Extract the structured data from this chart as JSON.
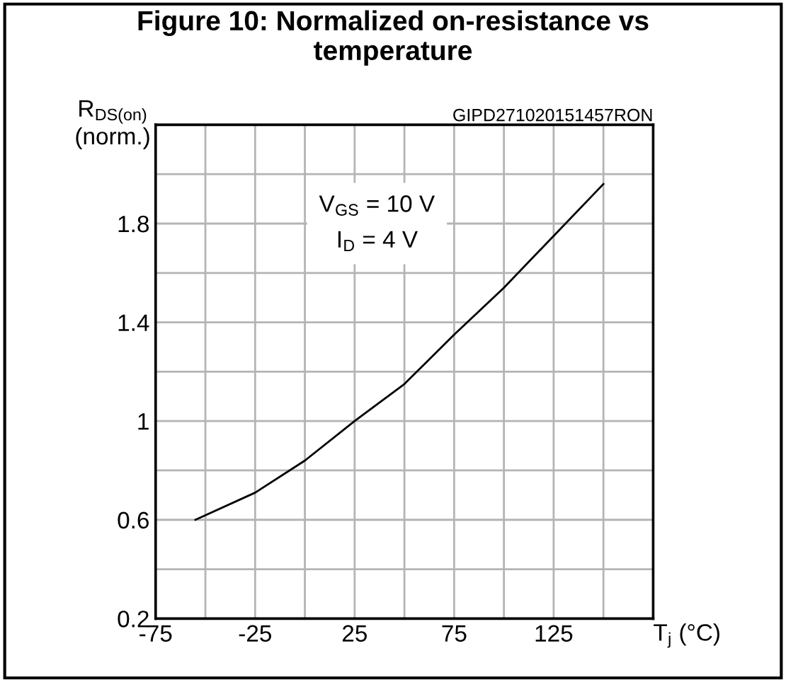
{
  "chart_data": {
    "type": "line",
    "title": "Figure 10: Normalized on-resistance vs\ntemperature",
    "xlabel": "T$_{j}$ (°C)",
    "ylabel": "R$_{DS(on)}$\n(norm.)",
    "annotations": [
      "GIPD271020151457RON",
      "V$_{GS}$ = 10 V\nI$_{D}$ = 4 V"
    ],
    "series": [
      {
        "color": "#000000",
        "x": [
          -55,
          -25,
          0,
          25,
          50,
          75,
          100,
          125,
          150
        ],
        "values": [
          0.6,
          0.71,
          0.84,
          1.0,
          1.15,
          1.35,
          1.54,
          1.75,
          1.96
        ]
      }
    ],
    "xlim": [
      -75,
      175
    ],
    "xticks": [
      -75,
      {
        "value": -50,
        "label": null
      },
      -25,
      {
        "value": 0,
        "label": null
      },
      25,
      {
        "value": 50,
        "label": null
      },
      75,
      {
        "value": 100,
        "label": null
      },
      125,
      {
        "value": 150,
        "label": null
      },
      {
        "value": 175,
        "label": null
      }
    ],
    "ylim": [
      0.2,
      2.2
    ],
    "yticks": [
      0.2,
      {
        "value": 0.4,
        "label": null
      },
      0.6,
      {
        "value": 0.8,
        "label": null
      },
      1,
      {
        "value": 1.2,
        "label": null
      },
      1.4,
      {
        "value": 1.6,
        "label": null
      },
      1.8,
      {
        "value": 2.0,
        "label": null
      },
      {
        "value": 2.2,
        "label": null
      }
    ],
    "grid": true,
    "marker": "none",
    "line_style": "solid"
  }
}
